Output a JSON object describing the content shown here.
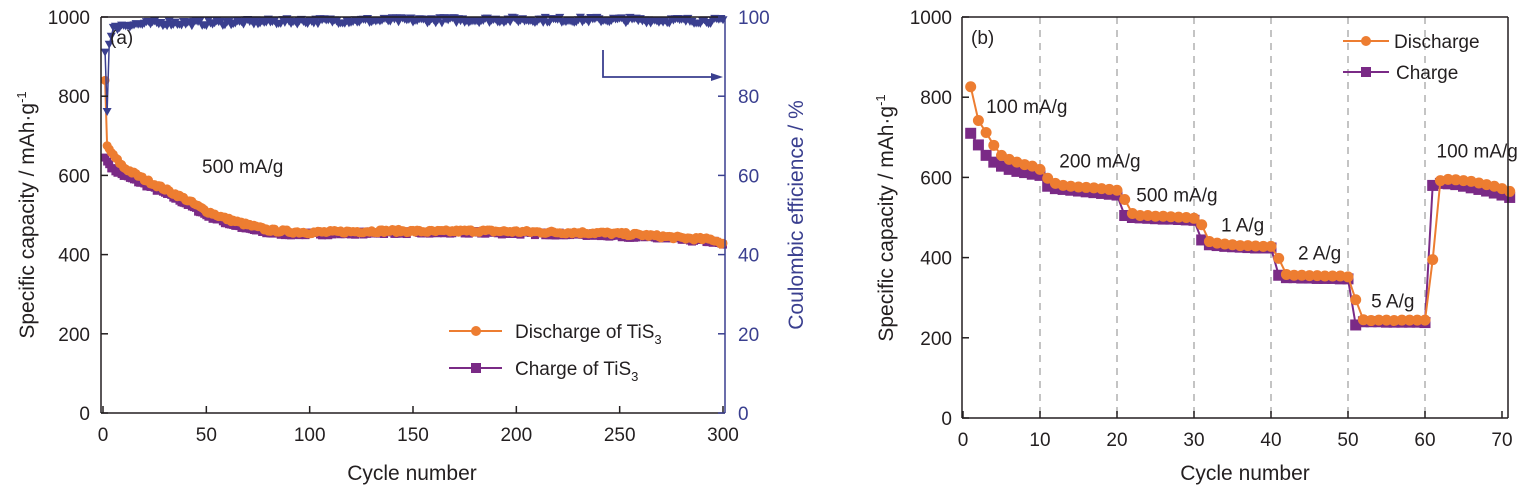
{
  "colors": {
    "discharge": "#ed7d31",
    "charge": "#7a2a86",
    "coulombic": "#3a3f8f",
    "axis": "#231f20",
    "grid": "#b0b0b0"
  },
  "chart_data": [
    {
      "type": "line",
      "panel_label": "(a)",
      "title": "",
      "xlabel": "Cycle number",
      "ylabel": "Specific capacity / mAh·g",
      "ylabel_superscript": "-1",
      "y2label": "Coulombic efficience / %",
      "xlim": [
        0,
        300
      ],
      "ylim": [
        0,
        1000
      ],
      "y2lim": [
        0,
        100
      ],
      "xticks": [
        "0",
        "50",
        "100",
        "150",
        "200",
        "250",
        "300"
      ],
      "yticks": [
        "0",
        "200",
        "400",
        "600",
        "800",
        "1000"
      ],
      "y2ticks": [
        "0",
        "20",
        "40",
        "60",
        "80",
        "100"
      ],
      "annotation": "500 mA/g",
      "legend_position": "bottom-right",
      "grid": false,
      "series": [
        {
          "name": "Discharge of TiS",
          "name_subscript": "3",
          "axis": "left",
          "marker": "circle",
          "keypoints": [
            [
              1,
              840
            ],
            [
              2,
              675
            ],
            [
              5,
              650
            ],
            [
              10,
              620
            ],
            [
              20,
              590
            ],
            [
              30,
              565
            ],
            [
              40,
              540
            ],
            [
              50,
              510
            ],
            [
              60,
              490
            ],
            [
              70,
              475
            ],
            [
              80,
              462
            ],
            [
              90,
              458
            ],
            [
              100,
              456
            ],
            [
              120,
              458
            ],
            [
              140,
              460
            ],
            [
              160,
              458
            ],
            [
              180,
              460
            ],
            [
              200,
              458
            ],
            [
              220,
              456
            ],
            [
              240,
              455
            ],
            [
              260,
              450
            ],
            [
              280,
              442
            ],
            [
              295,
              438
            ],
            [
              300,
              428
            ]
          ]
        },
        {
          "name": "Charge of TiS",
          "name_subscript": "3",
          "axis": "left",
          "marker": "square",
          "keypoints": [
            [
              1,
              645
            ],
            [
              2,
              635
            ],
            [
              5,
              615
            ],
            [
              10,
              600
            ],
            [
              20,
              578
            ],
            [
              30,
              555
            ],
            [
              40,
              530
            ],
            [
              50,
              500
            ],
            [
              60,
              480
            ],
            [
              70,
              465
            ],
            [
              80,
              455
            ],
            [
              90,
              452
            ],
            [
              100,
              452
            ],
            [
              120,
              454
            ],
            [
              140,
              456
            ],
            [
              160,
              455
            ],
            [
              180,
              456
            ],
            [
              200,
              454
            ],
            [
              220,
              452
            ],
            [
              240,
              450
            ],
            [
              260,
              445
            ],
            [
              280,
              438
            ],
            [
              295,
              433
            ],
            [
              300,
              425
            ]
          ]
        },
        {
          "name": "Coulombic efficiency",
          "axis": "right",
          "marker": "triangle-down",
          "keypoints": [
            [
              1,
              91
            ],
            [
              2,
              76
            ],
            [
              3,
              93
            ],
            [
              5,
              97
            ],
            [
              10,
              98
            ],
            [
              30,
              98.5
            ],
            [
              50,
              98.5
            ],
            [
              100,
              99
            ],
            [
              150,
              99.2
            ],
            [
              200,
              99.3
            ],
            [
              250,
              99.3
            ],
            [
              300,
              99
            ]
          ]
        }
      ]
    },
    {
      "type": "line",
      "panel_label": "(b)",
      "title": "",
      "xlabel": "Cycle number",
      "ylabel": "Specific capacity / mAh·g",
      "ylabel_superscript": "-1",
      "xlim": [
        0,
        71
      ],
      "ylim": [
        0,
        1000
      ],
      "xticks": [
        "0",
        "10",
        "20",
        "30",
        "40",
        "50",
        "60",
        "70"
      ],
      "yticks": [
        "0",
        "200",
        "400",
        "600",
        "800",
        "1000"
      ],
      "vlines": [
        10,
        20,
        30,
        40,
        50,
        60
      ],
      "legend_position": "top-right",
      "grid": false,
      "annotations": [
        {
          "text": "100 mA/g",
          "x": 3,
          "y": 760
        },
        {
          "text": "200 mA/g",
          "x": 12.5,
          "y": 625
        },
        {
          "text": "500 mA/g",
          "x": 22.5,
          "y": 540
        },
        {
          "text": "1 A/g",
          "x": 33.5,
          "y": 465
        },
        {
          "text": "2 A/g",
          "x": 43.5,
          "y": 395
        },
        {
          "text": "5 A/g",
          "x": 53,
          "y": 275
        },
        {
          "text": "100 mA/g",
          "x": 61.5,
          "y": 650
        }
      ],
      "series": [
        {
          "name": "Discharge",
          "marker": "circle",
          "x": [
            1,
            2,
            3,
            4,
            5,
            6,
            7,
            8,
            9,
            10,
            11,
            12,
            13,
            14,
            15,
            16,
            17,
            18,
            19,
            20,
            21,
            22,
            23,
            24,
            25,
            26,
            27,
            28,
            29,
            30,
            31,
            32,
            33,
            34,
            35,
            36,
            37,
            38,
            39,
            40,
            41,
            42,
            43,
            44,
            45,
            46,
            47,
            48,
            49,
            50,
            51,
            52,
            53,
            54,
            55,
            56,
            57,
            58,
            59,
            60,
            61,
            62,
            63,
            64,
            65,
            66,
            67,
            68,
            69,
            70,
            71
          ],
          "y": [
            826,
            742,
            712,
            680,
            655,
            645,
            638,
            632,
            628,
            620,
            598,
            585,
            580,
            578,
            576,
            575,
            574,
            572,
            570,
            568,
            545,
            510,
            505,
            505,
            503,
            503,
            502,
            501,
            500,
            498,
            482,
            440,
            436,
            434,
            432,
            430,
            430,
            429,
            428,
            428,
            398,
            358,
            356,
            356,
            355,
            355,
            354,
            354,
            354,
            352,
            295,
            245,
            243,
            244,
            244,
            243,
            244,
            244,
            244,
            244,
            395,
            592,
            595,
            594,
            592,
            590,
            586,
            582,
            578,
            572,
            565
          ],
          "values_note": "Read off gridlines; approximate"
        },
        {
          "name": "Charge",
          "marker": "square",
          "x": [
            1,
            2,
            3,
            4,
            5,
            6,
            7,
            8,
            9,
            10,
            11,
            12,
            13,
            14,
            15,
            16,
            17,
            18,
            19,
            20,
            21,
            22,
            23,
            24,
            25,
            26,
            27,
            28,
            29,
            30,
            31,
            32,
            33,
            34,
            35,
            36,
            37,
            38,
            39,
            40,
            41,
            42,
            43,
            44,
            45,
            46,
            47,
            48,
            49,
            50,
            51,
            52,
            53,
            54,
            55,
            56,
            57,
            58,
            59,
            60,
            61,
            62,
            63,
            64,
            65,
            66,
            67,
            68,
            69,
            70,
            71
          ],
          "y": [
            710,
            681,
            655,
            638,
            628,
            620,
            615,
            612,
            608,
            605,
            578,
            572,
            570,
            568,
            566,
            564,
            562,
            560,
            558,
            556,
            505,
            500,
            499,
            498,
            497,
            496,
            496,
            495,
            494,
            493,
            444,
            432,
            430,
            428,
            427,
            426,
            425,
            424,
            424,
            424,
            356,
            350,
            350,
            349,
            349,
            348,
            348,
            348,
            347,
            347,
            232,
            240,
            240,
            240,
            239,
            239,
            239,
            239,
            239,
            238,
            580,
            585,
            584,
            582,
            578,
            574,
            570,
            566,
            561,
            556,
            550
          ]
        }
      ]
    }
  ]
}
